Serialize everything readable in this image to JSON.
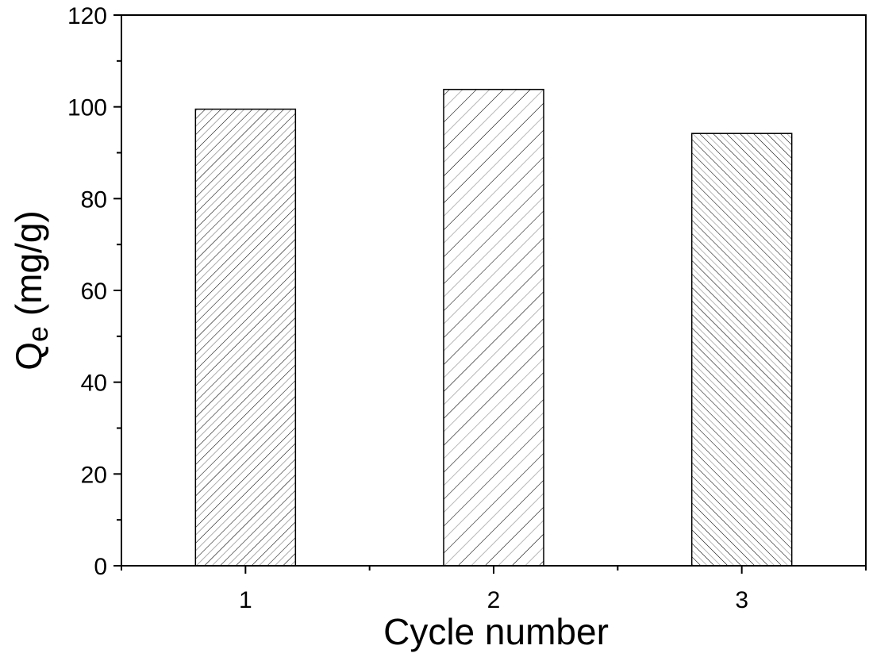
{
  "chart_data": {
    "type": "bar",
    "categories": [
      "1",
      "2",
      "3"
    ],
    "values": [
      99.5,
      103.8,
      94.2
    ],
    "title": "",
    "xlabel": "Cycle number",
    "ylabel_main": "Q",
    "ylabel_sub": "e",
    "ylabel_unit": " (mg/g)",
    "ylim": [
      0,
      120
    ],
    "yticks": [
      "0",
      "20",
      "40",
      "60",
      "80",
      "100",
      "120"
    ],
    "grid": false,
    "bar_fill": "#ffffff",
    "bar_stroke": "#000000",
    "bar_patterns": [
      "hatch-forward-dense",
      "hatch-forward-sparse",
      "hatch-backward-dense"
    ]
  }
}
